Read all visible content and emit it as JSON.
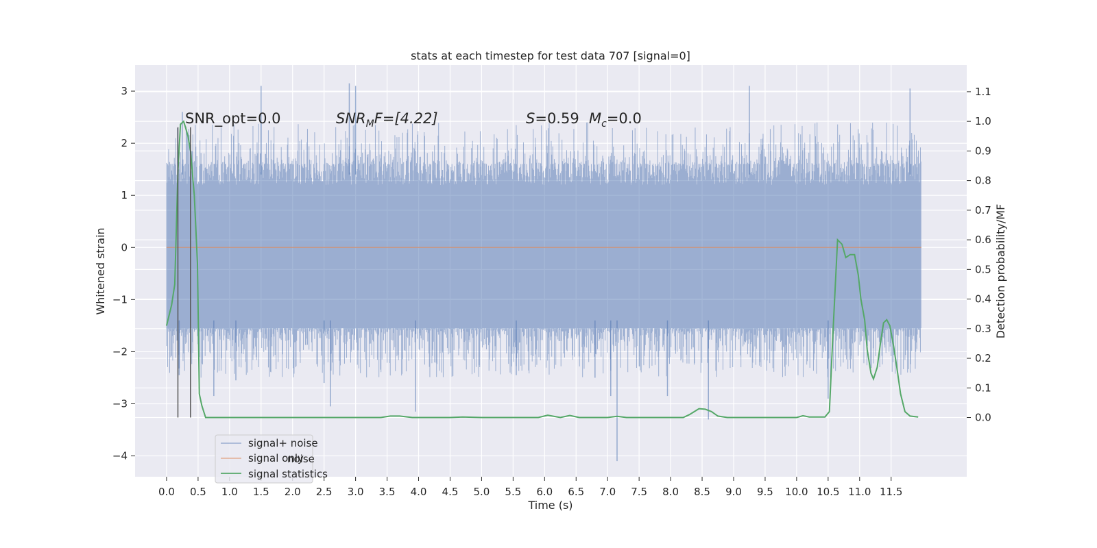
{
  "chart_data": {
    "type": "line",
    "title": "stats at each timestep for test data 707 [signal=0]",
    "xlabel": "Time (s)",
    "ylabel": "Whitened strain",
    "y2label": "Detection probability/MF",
    "xlim": [
      -0.5,
      12.7
    ],
    "ylim": [
      -4.4,
      3.5
    ],
    "y2lim": [
      -0.2,
      1.19
    ],
    "xticks": [
      0.0,
      0.5,
      1.0,
      1.5,
      2.0,
      2.5,
      3.0,
      3.5,
      4.0,
      4.5,
      5.0,
      5.5,
      6.0,
      6.5,
      7.0,
      7.5,
      8.0,
      8.5,
      9.0,
      9.5,
      10.0,
      10.5,
      11.0,
      11.5
    ],
    "xtick_labels": [
      "0.0",
      "0.5",
      "1.0",
      "1.5",
      "2.0",
      "2.5",
      "3.0",
      "3.5",
      "4.0",
      "4.5",
      "5.0",
      "5.5",
      "6.0",
      "6.5",
      "7.0",
      "7.5",
      "8.0",
      "8.5",
      "9.0",
      "9.5",
      "10.0",
      "10.5",
      "11.0",
      "11.5"
    ],
    "yticks": [
      -4,
      -3,
      -2,
      -1,
      0,
      1,
      2,
      3
    ],
    "ytick_labels": [
      "−4",
      "−3",
      "−2",
      "−1",
      "0",
      "1",
      "2",
      "3"
    ],
    "y2ticks": [
      0.0,
      0.1,
      0.2,
      0.3,
      0.4,
      0.5,
      0.6,
      0.7,
      0.8,
      0.9,
      1.0,
      1.1
    ],
    "y2tick_labels": [
      "0.0",
      "0.1",
      "0.2",
      "0.3",
      "0.4",
      "0.5",
      "0.6",
      "0.7",
      "0.8",
      "0.9",
      "1.0",
      "1.1"
    ],
    "grid": true,
    "legend_position": "lower-left",
    "colors": {
      "noise": "#4c72b0",
      "signal_only": "#dd8452",
      "statistics": "#55a868",
      "vlines": "#555555",
      "background": "#eaeaf2"
    },
    "annotations": [
      {
        "text": "SNR_opt=0.0"
      },
      {
        "text": "SNR_MF=[4.22]",
        "rendered": [
          "SNR",
          "M",
          "F=[4.22]"
        ]
      },
      {
        "text": "S=0.59",
        "rendered": [
          "S",
          "=0.59"
        ]
      },
      {
        "text": "M_c=0.0",
        "rendered": [
          "M",
          "c",
          "=0.0"
        ]
      }
    ],
    "vertical_lines_x": [
      0.18,
      0.38
    ],
    "series": [
      {
        "name": "signal+ noise",
        "kind": "noise_envelope",
        "x_range": [
          0.0,
          11.98
        ],
        "dense_band": [
          -1.55,
          1.6
        ],
        "typical_extremes": [
          -2.5,
          2.4
        ],
        "spikes": [
          {
            "x": 0.25,
            "y": 2.6
          },
          {
            "x": 0.2,
            "y": -2.45
          },
          {
            "x": 0.75,
            "y": -2.85
          },
          {
            "x": 1.5,
            "y": 3.1
          },
          {
            "x": 1.1,
            "y": -2.55
          },
          {
            "x": 2.5,
            "y": -2.6
          },
          {
            "x": 2.6,
            "y": -3.05
          },
          {
            "x": 2.9,
            "y": 3.15
          },
          {
            "x": 3.0,
            "y": 3.1
          },
          {
            "x": 3.95,
            "y": -3.15
          },
          {
            "x": 5.55,
            "y": -2.45
          },
          {
            "x": 7.05,
            "y": -2.85
          },
          {
            "x": 7.15,
            "y": -4.1
          },
          {
            "x": 7.95,
            "y": -2.85
          },
          {
            "x": 8.6,
            "y": -3.3
          },
          {
            "x": 9.25,
            "y": 3.1
          },
          {
            "x": 10.5,
            "y": -2.9
          },
          {
            "x": 11.8,
            "y": 3.05
          },
          {
            "x": 6.8,
            "y": -2.5
          }
        ]
      },
      {
        "name": "signal only",
        "kind": "flat",
        "x": [
          0.0,
          11.98
        ],
        "y": [
          0.0,
          0.0
        ]
      },
      {
        "name": "signal statistics",
        "kind": "line",
        "axis": "right",
        "x": [
          0.0,
          0.08,
          0.13,
          0.18,
          0.22,
          0.27,
          0.3,
          0.34,
          0.38,
          0.44,
          0.49,
          0.52,
          0.56,
          0.62,
          3.0,
          3.4,
          3.55,
          3.7,
          3.9,
          4.5,
          4.7,
          5.0,
          5.9,
          6.05,
          6.25,
          6.4,
          6.55,
          7.0,
          7.15,
          7.3,
          8.2,
          8.3,
          8.45,
          8.55,
          8.65,
          8.75,
          8.9,
          9.0,
          10.0,
          10.1,
          10.2,
          10.45,
          10.52,
          10.58,
          10.65,
          10.72,
          10.78,
          10.85,
          10.92,
          10.98,
          11.02,
          11.08,
          11.12,
          11.18,
          11.22,
          11.28,
          11.33,
          11.38,
          11.43,
          11.48,
          11.54,
          11.59,
          11.65,
          11.72,
          11.8,
          11.93
        ],
        "y": [
          0.31,
          0.38,
          0.45,
          0.83,
          0.99,
          1.0,
          0.98,
          0.95,
          0.9,
          0.75,
          0.52,
          0.08,
          0.04,
          0.0,
          0.0,
          0.0,
          0.005,
          0.005,
          0.0,
          0.0,
          0.002,
          0.0,
          0.0,
          0.008,
          0.0,
          0.007,
          0.0,
          0.0,
          0.004,
          0.0,
          0.0,
          0.01,
          0.03,
          0.028,
          0.02,
          0.005,
          0.0,
          0.0,
          0.0,
          0.006,
          0.002,
          0.002,
          0.02,
          0.3,
          0.6,
          0.585,
          0.54,
          0.55,
          0.55,
          0.48,
          0.4,
          0.33,
          0.23,
          0.15,
          0.13,
          0.17,
          0.25,
          0.32,
          0.33,
          0.31,
          0.24,
          0.17,
          0.08,
          0.02,
          0.005,
          0.002
        ]
      }
    ],
    "legend": [
      {
        "label": "signal+ noise",
        "ghost": "noise"
      },
      {
        "label": "signal only",
        "ghost": "noise"
      },
      {
        "label": "signal statistics"
      }
    ]
  }
}
